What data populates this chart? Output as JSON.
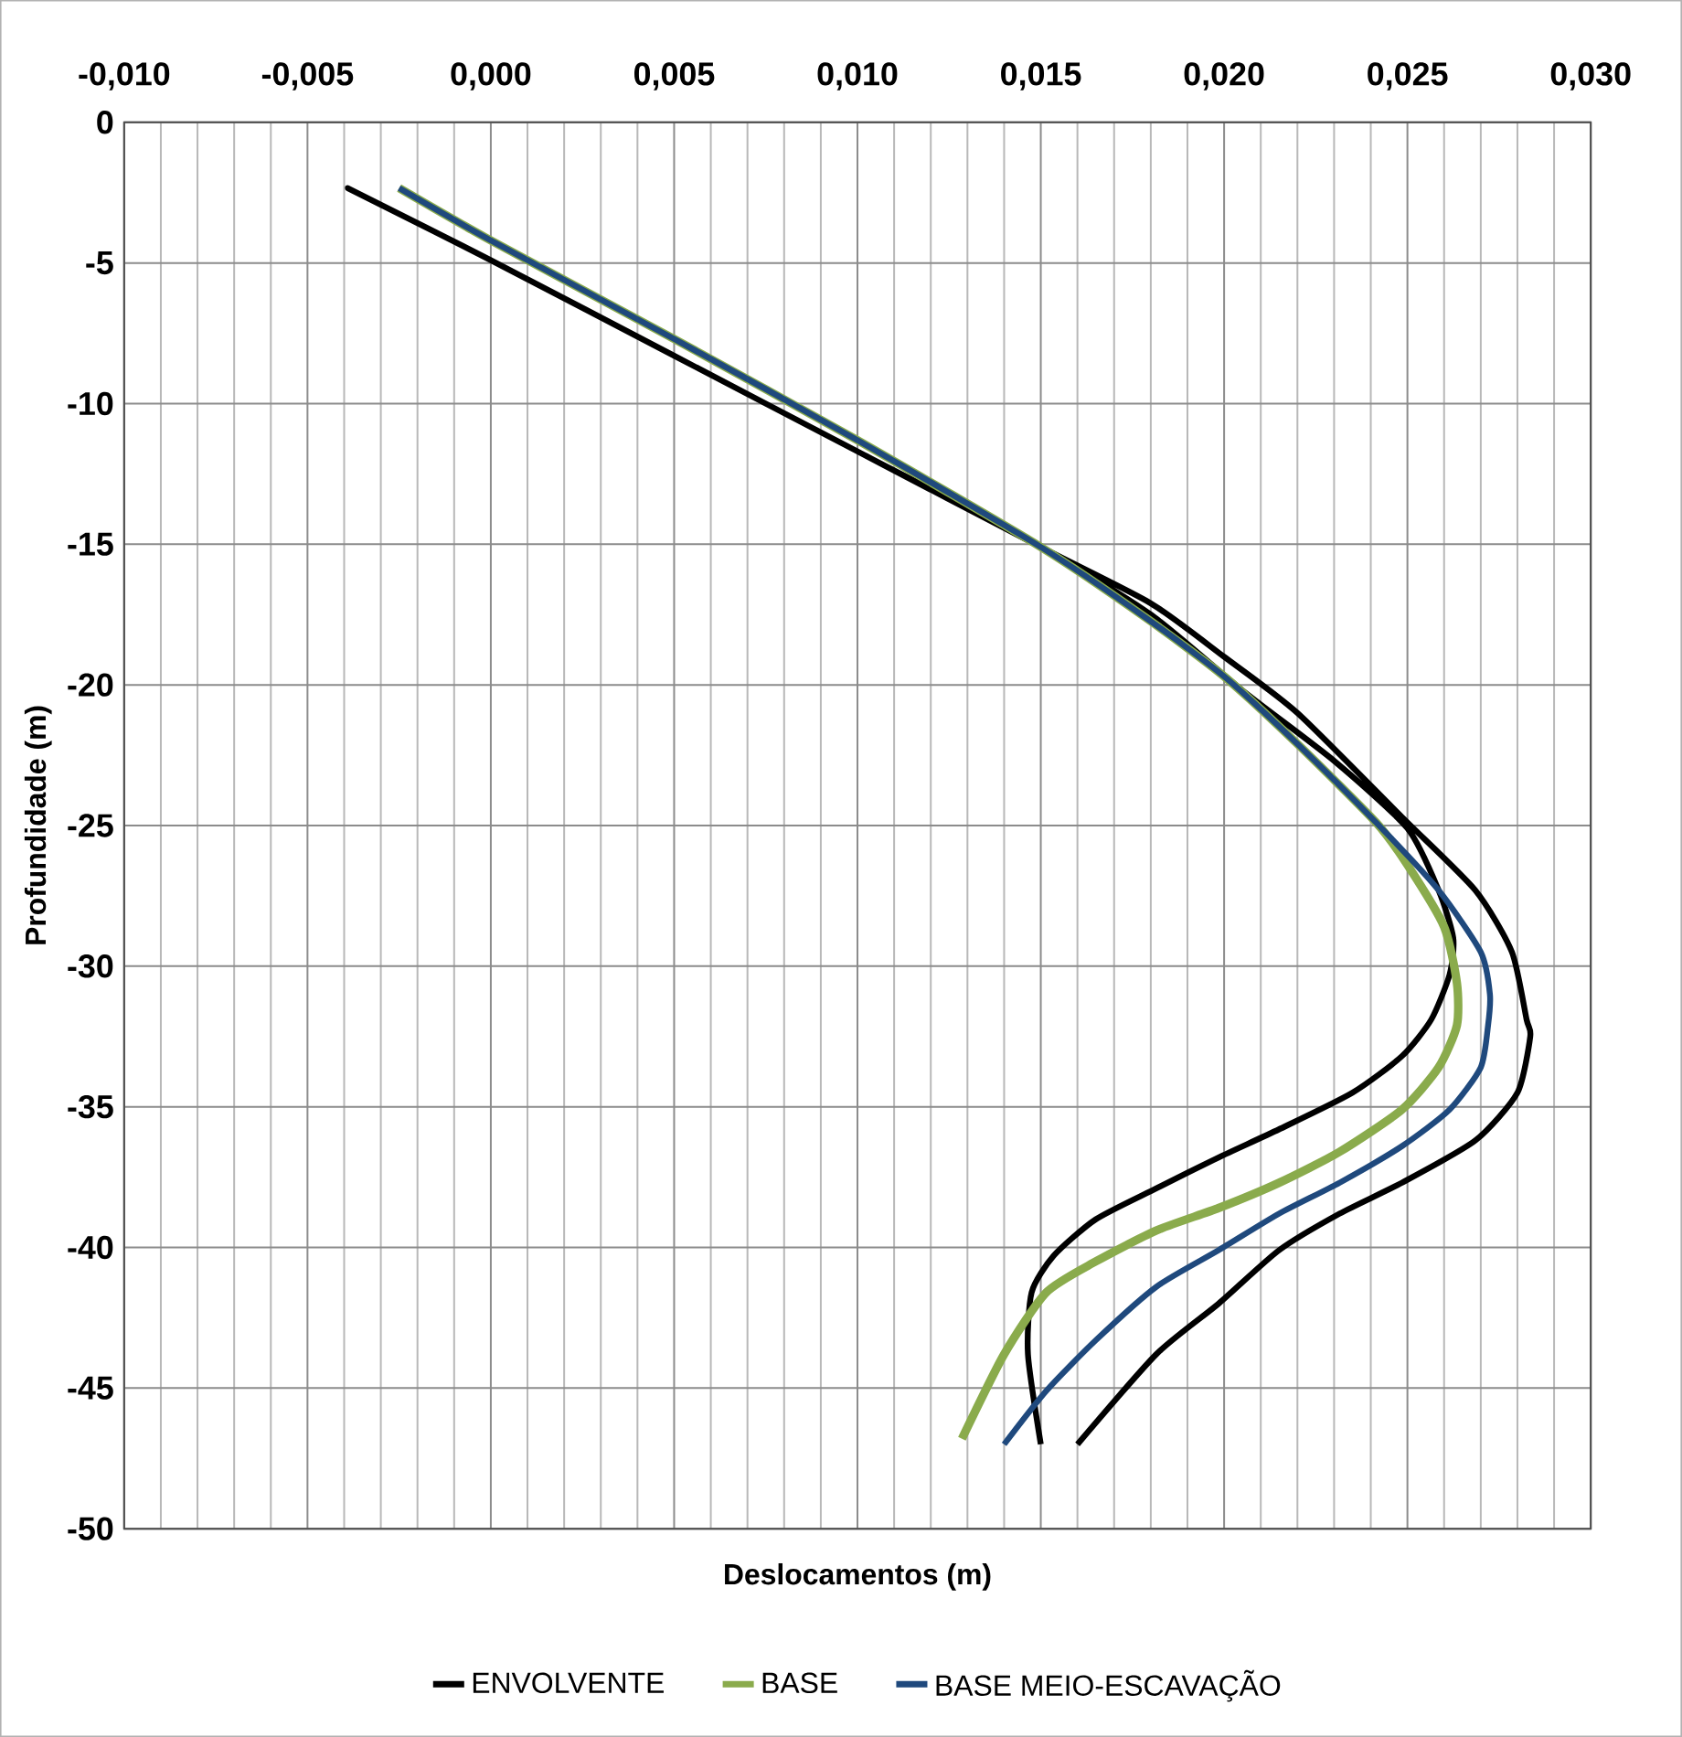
{
  "chart_data": {
    "type": "line",
    "xlabel": "Deslocamentos (m)",
    "ylabel": "Profundidade (m)",
    "xlim": [
      -0.01,
      0.03
    ],
    "ylim": [
      -50,
      0
    ],
    "xticks": [
      {
        "value": -0.01,
        "label": "-0,010"
      },
      {
        "value": -0.005,
        "label": "-0,005"
      },
      {
        "value": 0,
        "label": "0,000"
      },
      {
        "value": 0.005,
        "label": "0,005"
      },
      {
        "value": 0.01,
        "label": "0,010"
      },
      {
        "value": 0.015,
        "label": "0,015"
      },
      {
        "value": 0.02,
        "label": "0,020"
      },
      {
        "value": 0.025,
        "label": "0,025"
      },
      {
        "value": 0.03,
        "label": "0,030"
      }
    ],
    "yticks": [
      0,
      -5,
      -10,
      -15,
      -20,
      -25,
      -30,
      -35,
      -40,
      -45,
      -50
    ],
    "grid": true,
    "legend": "bottom",
    "marker": "none",
    "line_style": "solid",
    "series": [
      {
        "name": "ENVOLVENTE",
        "color": "#000000",
        "x": [
          0.015,
          0.01465,
          0.01475,
          0.01535,
          0.0165,
          0.01815,
          0.01985,
          0.0215,
          0.0235,
          0.02485,
          0.02565,
          0.02615,
          0.02625,
          0.02585,
          0.025,
          0.023,
          0.0205,
          0.018,
          0.015,
          0.01,
          0.005,
          0,
          -0.0039,
          0,
          0.005,
          0.01,
          0.015,
          0.018,
          0.02,
          0.022,
          0.02485,
          0.02685,
          0.02785,
          0.02825,
          0.02835,
          0.028,
          0.02685,
          0.02485,
          0.02315,
          0.0215,
          0.01985,
          0.01815,
          0.016
        ],
        "values": [
          -47.0,
          -43.8,
          -41.6,
          -40.3,
          -39.0,
          -37.9,
          -36.8,
          -35.8,
          -34.5,
          -33.2,
          -31.9,
          -30.3,
          -29.0,
          -27.3,
          -25.1,
          -22.7,
          -20.2,
          -17.5,
          -15.1,
          -11.7,
          -8.3,
          -4.9,
          -2.34,
          -4.9,
          -8.3,
          -11.7,
          -15.1,
          -17.1,
          -19.0,
          -21.0,
          -24.7,
          -27.3,
          -29.5,
          -31.9,
          -32.5,
          -34.5,
          -36.2,
          -37.7,
          -38.8,
          -40.1,
          -42.0,
          -43.8,
          -47.0
        ]
      },
      {
        "name": "BASE",
        "color": "#8aab4c",
        "x": [
          -0.0025,
          0,
          0.005,
          0.01,
          0.015,
          0.01785,
          0.02,
          0.022,
          0.02415,
          0.025,
          0.026,
          0.02635,
          0.02635,
          0.02585,
          0.02485,
          0.02315,
          0.0215,
          0.01985,
          0.01815,
          0.0165,
          0.01515,
          0.014,
          0.01285
        ],
        "values": [
          -2.34,
          -4.2,
          -7.7,
          -11.3,
          -15.1,
          -17.6,
          -19.7,
          -22.1,
          -24.9,
          -26.4,
          -28.6,
          -30.6,
          -32.1,
          -33.6,
          -35.1,
          -36.6,
          -37.7,
          -38.6,
          -39.4,
          -40.5,
          -41.6,
          -43.8,
          -46.8
        ]
      },
      {
        "name": "BASE MEIO-ESCAVAÇÃO",
        "color": "#1f497d",
        "x": [
          -0.0025,
          0,
          0.005,
          0.01,
          0.015,
          0.01785,
          0.02,
          0.022,
          0.02415,
          0.02585,
          0.027,
          0.02725,
          0.0272,
          0.027,
          0.02615,
          0.02485,
          0.02315,
          0.0215,
          0.01985,
          0.01815,
          0.0165,
          0.01515,
          0.014
        ],
        "values": [
          -2.34,
          -4.2,
          -7.7,
          -11.3,
          -15.1,
          -17.6,
          -19.7,
          -22.1,
          -24.9,
          -27.3,
          -29.5,
          -31.0,
          -32.1,
          -33.6,
          -35.1,
          -36.4,
          -37.7,
          -38.8,
          -40.1,
          -41.4,
          -43.3,
          -45.1,
          -47.0
        ]
      }
    ]
  }
}
